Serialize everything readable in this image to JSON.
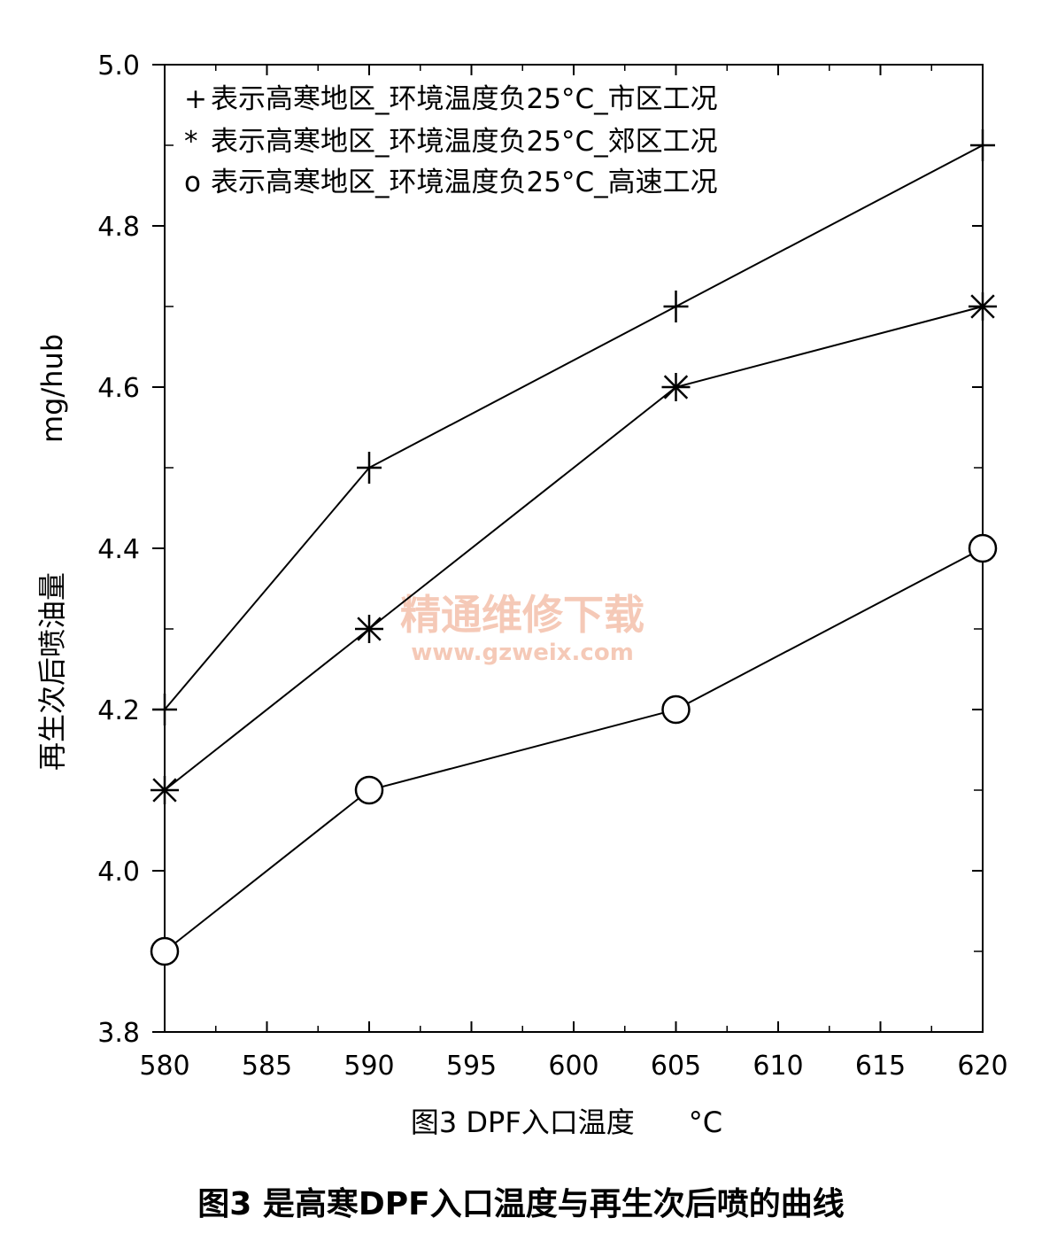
{
  "chart_data": {
    "type": "line",
    "x": [
      580,
      590,
      605,
      620
    ],
    "xlim": [
      580,
      620
    ],
    "ylim": [
      3.8,
      5.0
    ],
    "xticks": [
      "580",
      "585",
      "590",
      "595",
      "600",
      "605",
      "610",
      "615",
      "620"
    ],
    "yticks": [
      "3.8",
      "4.0",
      "4.2",
      "4.4",
      "4.6",
      "4.8",
      "5.0"
    ],
    "xlabel": "图3 DPF入口温度      °C",
    "ylabel_text": "再生次后喷油量",
    "ylabel_unit": "mg/hub",
    "grid": false,
    "legend_position": "top-left",
    "series": [
      {
        "legend_marker": "+",
        "legend_text": "表示高寒地区_环境温度负25°C_市区工况",
        "marker": "plus",
        "values": [
          4.2,
          4.5,
          4.7,
          4.9
        ]
      },
      {
        "legend_marker": "*",
        "legend_text": "表示高寒地区_环境温度负25°C_郊区工况",
        "marker": "star",
        "values": [
          4.1,
          4.3,
          4.6,
          4.7
        ]
      },
      {
        "legend_marker": "o",
        "legend_text": "表示高寒地区_环境温度负25°C_高速工况",
        "marker": "circle",
        "values": [
          3.9,
          4.1,
          4.2,
          4.4
        ]
      }
    ],
    "colors": {
      "line": "#000000",
      "watermark": "#f2b8a0"
    }
  },
  "watermark": {
    "line1": "精通维修下载",
    "line2": "www.gzweix.com"
  },
  "caption": "图3  是高寒DPF入口温度与再生次后喷的曲线"
}
